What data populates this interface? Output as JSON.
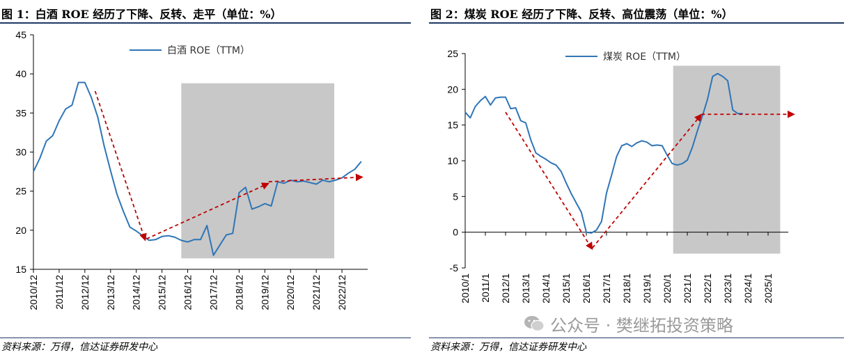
{
  "source_note": "资料来源：万得，信达证券研发中心",
  "watermark_text": "公众号 · 樊继拓投资策略",
  "colors": {
    "line": "#2e75b6",
    "arrow": "#c00000",
    "shade": "#c8c8c8",
    "rule": "#1f3864"
  },
  "chart_data": [
    {
      "type": "line",
      "title": "图 1：白酒 ROE 经历了下降、反转、走平（单位：%）",
      "legend": "白酒  ROE（TTM）",
      "legend_position": "top-center",
      "ylim": [
        15,
        45
      ],
      "yticks": [
        15,
        20,
        25,
        30,
        35,
        40,
        45
      ],
      "xlim": [
        2010.75,
        2023.75
      ],
      "xticks": [
        2010.75,
        2011.75,
        2012.75,
        2013.75,
        2014.75,
        2015.75,
        2016.75,
        2017.75,
        2018.75,
        2019.75,
        2020.75,
        2021.75,
        2022.75
      ],
      "xtick_labels": [
        "2010/12",
        "2011/12",
        "2012/12",
        "2013/12",
        "2014/12",
        "2015/12",
        "2016/12",
        "2017/12",
        "2018/12",
        "2019/12",
        "2020/12",
        "2021/12",
        "2022/12"
      ],
      "shaded_region": {
        "x": [
          2016.5,
          2022.45
        ],
        "y": [
          16.4,
          38.8
        ]
      },
      "series": [
        {
          "name": "白酒 ROE（TTM）",
          "x": [
            2010.75,
            2011.0,
            2011.25,
            2011.5,
            2011.75,
            2012.0,
            2012.25,
            2012.5,
            2012.75,
            2013.0,
            2013.25,
            2013.5,
            2013.75,
            2014.0,
            2014.25,
            2014.5,
            2014.75,
            2015.0,
            2015.25,
            2015.5,
            2015.75,
            2016.0,
            2016.25,
            2016.5,
            2016.75,
            2017.0,
            2017.25,
            2017.5,
            2017.75,
            2018.0,
            2018.25,
            2018.5,
            2018.75,
            2019.0,
            2019.25,
            2019.5,
            2019.75,
            2020.0,
            2020.25,
            2020.5,
            2020.75,
            2021.0,
            2021.25,
            2021.5,
            2021.75,
            2022.0,
            2022.25,
            2022.5,
            2022.75,
            2023.0,
            2023.25,
            2023.5
          ],
          "y": [
            27.5,
            29.2,
            31.4,
            32.1,
            34.0,
            35.5,
            36.0,
            38.9,
            38.9,
            37.0,
            34.5,
            30.8,
            27.6,
            24.6,
            22.4,
            20.4,
            19.9,
            19.3,
            18.7,
            18.8,
            19.2,
            19.3,
            19.1,
            18.7,
            18.5,
            18.8,
            18.8,
            20.6,
            16.8,
            18.1,
            19.4,
            19.6,
            24.8,
            25.5,
            22.7,
            23.0,
            23.4,
            23.1,
            26.2,
            26.0,
            26.4,
            26.2,
            26.3,
            26.1,
            25.9,
            26.4,
            26.2,
            26.4,
            26.7,
            27.3,
            27.8,
            28.8
          ]
        }
      ],
      "arrows": [
        {
          "from": [
            2013.15,
            37.8
          ],
          "to": [
            2015.1,
            18.7
          ]
        },
        {
          "from": [
            2015.15,
            18.9
          ],
          "to": [
            2019.9,
            26.0
          ]
        },
        {
          "from": [
            2019.9,
            26.2
          ],
          "to": [
            2023.55,
            26.8
          ]
        }
      ]
    },
    {
      "type": "line",
      "title": "图 2：煤炭 ROE 经历了下降、反转、高位震荡（单位：%）",
      "legend": "煤炭  ROE（TTM）",
      "legend_position": "top-center",
      "ylim": [
        -5,
        25
      ],
      "yticks": [
        -5,
        0,
        5,
        10,
        15,
        20,
        25
      ],
      "xlim": [
        2010.0,
        2026.0
      ],
      "xticks": [
        2010.0,
        2011.0,
        2012.0,
        2013.0,
        2014.0,
        2015.0,
        2016.0,
        2017.0,
        2018.0,
        2019.0,
        2020.0,
        2021.0,
        2022.0,
        2023.0,
        2024.0,
        2025.0
      ],
      "xtick_labels": [
        "2010/1",
        "2011/1",
        "2012/1",
        "2013/1",
        "2014/1",
        "2015/1",
        "2016/1",
        "2017/1",
        "2018/1",
        "2019/1",
        "2020/1",
        "2021/1",
        "2022/1",
        "2023/1",
        "2024/1",
        "2025/1"
      ],
      "shaded_region": {
        "x": [
          2020.3,
          2025.6
        ],
        "y": [
          -3,
          23.3
        ]
      },
      "series": [
        {
          "name": "煤炭 ROE（TTM）",
          "x": [
            2010.0,
            2010.25,
            2010.5,
            2010.75,
            2011.0,
            2011.25,
            2011.5,
            2011.75,
            2012.0,
            2012.25,
            2012.5,
            2012.75,
            2013.0,
            2013.25,
            2013.5,
            2013.75,
            2014.0,
            2014.25,
            2014.5,
            2014.75,
            2015.0,
            2015.25,
            2015.5,
            2015.75,
            2016.0,
            2016.25,
            2016.5,
            2016.75,
            2017.0,
            2017.25,
            2017.5,
            2017.75,
            2018.0,
            2018.25,
            2018.5,
            2018.75,
            2019.0,
            2019.25,
            2019.5,
            2019.75,
            2020.0,
            2020.25,
            2020.5,
            2020.75,
            2021.0,
            2021.25,
            2021.5,
            2021.75,
            2022.0,
            2022.25,
            2022.5,
            2022.75,
            2023.0,
            2023.25,
            2023.5,
            2023.75
          ],
          "y": [
            16.8,
            16.0,
            17.6,
            18.4,
            19.0,
            17.8,
            18.8,
            18.9,
            18.9,
            17.3,
            17.4,
            15.6,
            15.3,
            12.9,
            11.1,
            10.6,
            10.2,
            9.7,
            9.4,
            8.5,
            6.9,
            5.4,
            4.1,
            2.8,
            0.0,
            -0.1,
            0.3,
            1.5,
            5.5,
            8.0,
            10.6,
            12.1,
            12.4,
            12.0,
            12.5,
            12.8,
            12.6,
            12.1,
            12.2,
            12.1,
            10.8,
            9.6,
            9.4,
            9.6,
            10.1,
            11.9,
            14.2,
            16.3,
            18.6,
            21.8,
            22.2,
            21.8,
            21.2,
            17.1,
            16.6,
            16.6
          ]
        }
      ],
      "arrows": [
        {
          "from": [
            2012.0,
            16.8
          ],
          "to": [
            2016.3,
            -2.4
          ]
        },
        {
          "from": [
            2016.3,
            -2.2
          ],
          "to": [
            2021.7,
            16.5
          ]
        },
        {
          "from": [
            2021.7,
            16.5
          ],
          "to": [
            2026.3,
            16.5
          ]
        }
      ]
    }
  ]
}
